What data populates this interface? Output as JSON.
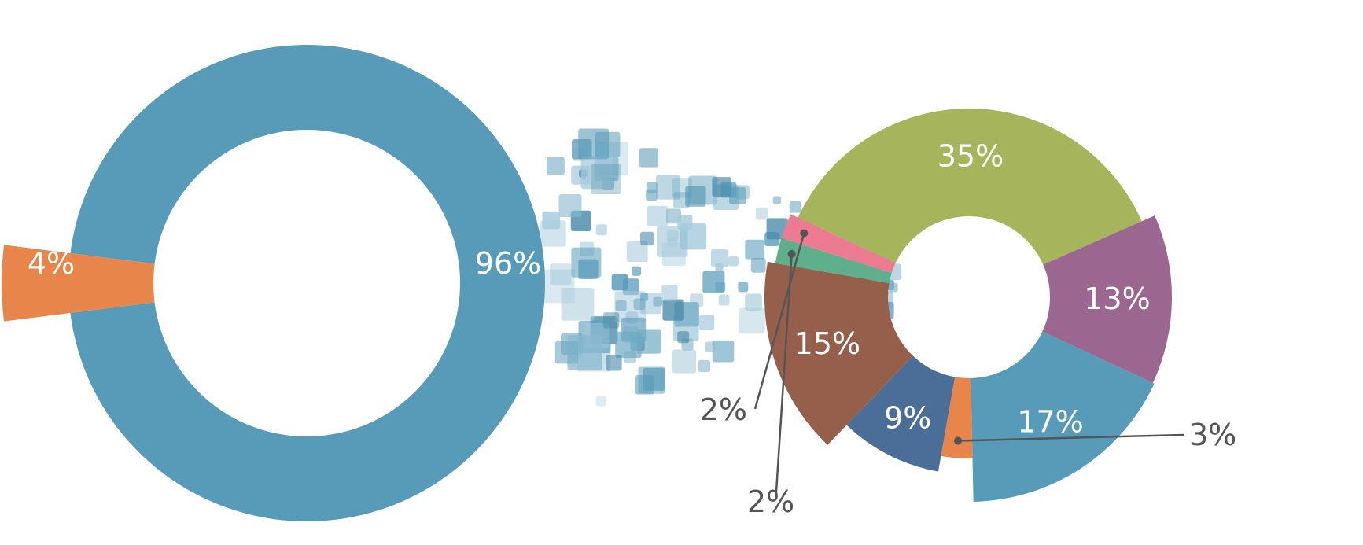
{
  "colors": {
    "teal": "#579bb8",
    "orange": "#e8854a",
    "green": "#a6b55b",
    "purple": "#9b6690",
    "navy": "#4b6e98",
    "brown": "#965f4c",
    "pink": "#ec7b91",
    "mint": "#5faf8c"
  },
  "chart_data": [
    {
      "type": "pie",
      "variant": "donut",
      "slices": [
        {
          "value": 96,
          "label": "96%",
          "color": "#579bb8"
        },
        {
          "value": 4,
          "label": "4%",
          "color": "#e8854a",
          "exploded": true
        }
      ]
    },
    {
      "type": "pie",
      "variant": "donut",
      "slices": [
        {
          "value": 35,
          "label": "35%",
          "color": "#a6b55b"
        },
        {
          "value": 13,
          "label": "13%",
          "color": "#9b6690"
        },
        {
          "value": 17,
          "label": "17%",
          "color": "#579bb8"
        },
        {
          "value": 3,
          "label": "3%",
          "color": "#e8854a"
        },
        {
          "value": 9,
          "label": "9%",
          "color": "#4b6e98"
        },
        {
          "value": 15,
          "label": "15%",
          "color": "#965f4c"
        },
        {
          "value": 2,
          "label": "2%",
          "color": "#5faf8c"
        },
        {
          "value": 2,
          "label": "2%",
          "color": "#ec7b91"
        }
      ]
    }
  ]
}
